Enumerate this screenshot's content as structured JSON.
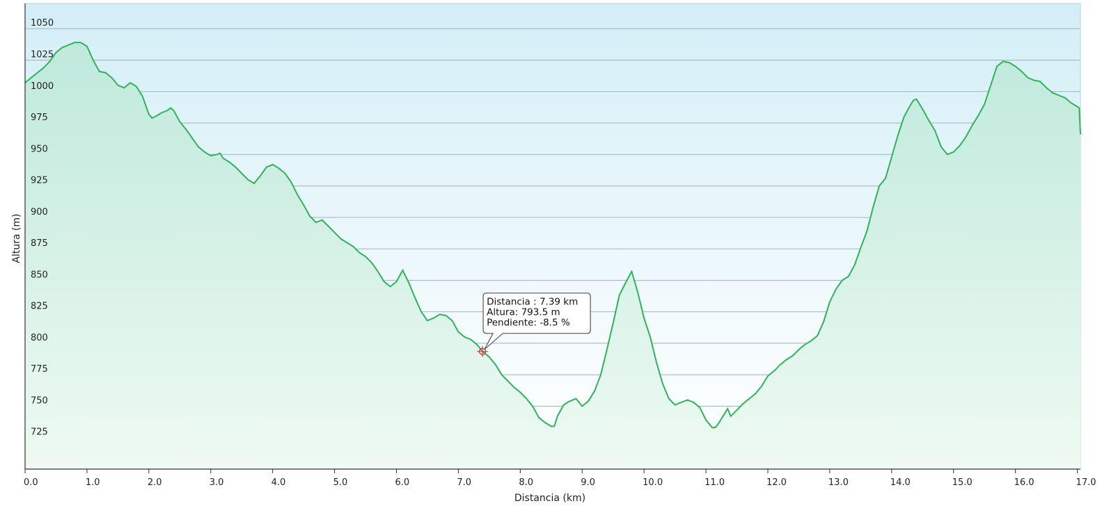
{
  "chart_data": {
    "type": "area",
    "xlabel": "Distancia  (km)",
    "ylabel": "Altura (m)",
    "xlim": [
      0,
      17.05
    ],
    "ylim": [
      700,
      1070
    ],
    "x_ticks": [
      0,
      1,
      2,
      3,
      4,
      5,
      6,
      7,
      8,
      9,
      10,
      11,
      12,
      13,
      14,
      15,
      16,
      17
    ],
    "x_tick_labels": [
      "0.0",
      "1.0",
      "2.0",
      "3.0",
      "4.0",
      "5.0",
      "6.0",
      "7.0",
      "8.0",
      "9.0",
      "10.0",
      "11.0",
      "12.0",
      "13.0",
      "14.0",
      "15.0",
      "16.0",
      "17.0"
    ],
    "y_ticks": [
      725,
      750,
      775,
      800,
      825,
      850,
      875,
      900,
      925,
      950,
      975,
      1000,
      1025,
      1050
    ],
    "y_tick_labels": [
      "725",
      "750",
      "775",
      "800",
      "825",
      "850",
      "875",
      "900",
      "925",
      "950",
      "975",
      "1000",
      "1025",
      "1050"
    ],
    "grid": "horizontal",
    "line_color": "#2fb35a",
    "marker_color": "#e8363a",
    "series": [
      {
        "x": [
          0.0,
          0.1,
          0.2,
          0.3,
          0.4,
          0.5,
          0.6,
          0.7,
          0.8,
          0.9,
          1.0,
          1.1,
          1.2,
          1.3,
          1.4,
          1.5,
          1.6,
          1.7,
          1.8,
          1.9,
          2.0,
          2.05,
          2.1,
          2.2,
          2.3,
          2.35,
          2.4,
          2.5,
          2.6,
          2.7,
          2.8,
          2.9,
          3.0,
          3.1,
          3.15,
          3.2,
          3.3,
          3.4,
          3.5,
          3.6,
          3.7,
          3.8,
          3.9,
          4.0,
          4.1,
          4.2,
          4.3,
          4.4,
          4.5,
          4.6,
          4.7,
          4.8,
          4.9,
          5.0,
          5.1,
          5.2,
          5.3,
          5.4,
          5.5,
          5.6,
          5.7,
          5.8,
          5.9,
          6.0,
          6.1,
          6.2,
          6.3,
          6.4,
          6.5,
          6.6,
          6.7,
          6.8,
          6.9,
          7.0,
          7.1,
          7.2,
          7.3,
          7.39,
          7.5,
          7.6,
          7.7,
          7.8,
          7.9,
          8.0,
          8.1,
          8.2,
          8.3,
          8.4,
          8.5,
          8.55,
          8.6,
          8.7,
          8.8,
          8.9,
          9.0,
          9.1,
          9.2,
          9.3,
          9.4,
          9.5,
          9.6,
          9.7,
          9.8,
          9.9,
          10.0,
          10.1,
          10.2,
          10.3,
          10.4,
          10.5,
          10.6,
          10.7,
          10.8,
          10.9,
          11.0,
          11.1,
          11.15,
          11.2,
          11.3,
          11.35,
          11.4,
          11.5,
          11.6,
          11.7,
          11.8,
          11.9,
          12.0,
          12.1,
          12.2,
          12.3,
          12.4,
          12.5,
          12.6,
          12.7,
          12.8,
          12.9,
          13.0,
          13.1,
          13.2,
          13.3,
          13.4,
          13.5,
          13.6,
          13.7,
          13.8,
          13.9,
          14.0,
          14.1,
          14.2,
          14.3,
          14.35,
          14.4,
          14.5,
          14.6,
          14.7,
          14.8,
          14.9,
          15.0,
          15.1,
          15.2,
          15.3,
          15.4,
          15.5,
          15.6,
          15.7,
          15.8,
          15.9,
          16.0,
          16.1,
          16.2,
          16.3,
          16.4,
          16.5,
          16.6,
          16.7,
          16.8,
          16.9,
          17.0,
          17.03,
          17.05
        ],
        "y": [
          1007,
          1011,
          1015,
          1019,
          1024,
          1031,
          1035,
          1037,
          1039,
          1039,
          1036,
          1025,
          1016,
          1015,
          1011,
          1005,
          1003,
          1007,
          1004,
          996,
          982,
          979,
          980,
          983,
          985,
          987,
          985,
          976,
          970,
          963,
          956,
          952,
          949,
          950,
          951,
          947,
          944,
          940,
          935,
          930,
          927,
          933,
          940,
          942,
          939,
          935,
          928,
          918,
          910,
          901,
          896,
          898,
          893,
          888,
          883,
          880,
          877,
          872,
          869,
          864,
          857,
          849,
          845,
          849,
          858,
          848,
          836,
          825,
          818,
          820,
          823,
          822,
          818,
          809,
          805,
          803,
          799,
          793.5,
          789,
          783,
          775,
          770,
          765,
          761,
          756,
          750,
          741,
          737,
          734,
          734,
          742,
          751,
          754,
          756,
          750,
          754,
          762,
          775,
          795,
          816,
          838,
          848,
          857,
          840,
          820,
          805,
          785,
          768,
          756,
          751,
          753,
          755,
          753,
          749,
          739,
          733,
          733,
          736,
          744,
          748,
          742,
          747,
          752,
          756,
          760,
          766,
          774,
          778,
          783,
          787,
          790,
          795,
          799,
          802,
          806,
          817,
          833,
          843,
          850,
          853,
          862,
          876,
          889,
          908,
          925,
          931,
          948,
          965,
          980,
          989,
          993,
          994,
          986,
          977,
          969,
          956,
          950,
          952,
          957,
          964,
          973,
          981,
          990,
          1005,
          1020,
          1024,
          1023,
          1020,
          1016,
          1011,
          1009,
          1008,
          1003,
          999,
          997,
          995,
          991,
          988,
          987,
          966
        ]
      }
    ],
    "tooltip": {
      "x": 7.39,
      "y": 793.5,
      "line1": "Distancia : 7.39 km",
      "line2": "Altura: 793.5 m",
      "line3": "Pendiente: -8.5 %"
    }
  }
}
